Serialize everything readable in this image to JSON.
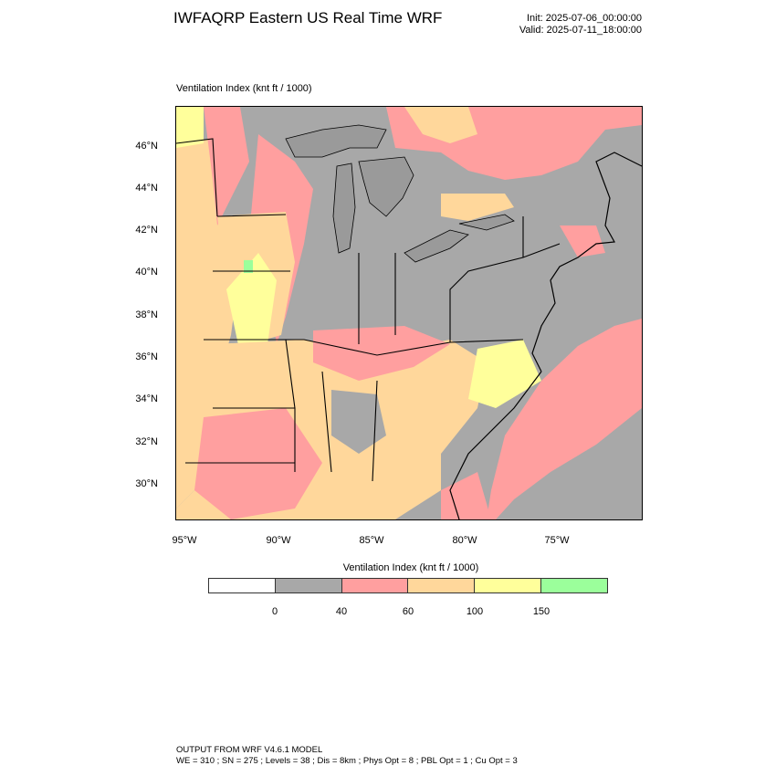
{
  "header": {
    "title": "IWFAQRP Eastern US Real Time WRF",
    "init": "Init: 2025-07-06_00:00:00",
    "valid": "Valid: 2025-07-11_18:00:00"
  },
  "map": {
    "subtitle": "Ventilation Index   (knt ft / 1000)",
    "lat_labels": [
      "46°N",
      "44°N",
      "42°N",
      "40°N",
      "38°N",
      "36°N",
      "34°N",
      "32°N",
      "30°N"
    ],
    "lon_labels": [
      "95°W",
      "90°W",
      "85°W",
      "80°W",
      "75°W"
    ],
    "colors": {
      "none": "#a8a8a8",
      "low": "#ff9f9f",
      "mid": "#ffd79b",
      "high": "#ffff9b",
      "top": "#9bff9b",
      "ocean": "#a8a8a8"
    }
  },
  "colorbar": {
    "title": "Ventilation Index  (knt ft / 1000)",
    "ticks": [
      "0",
      "40",
      "60",
      "100",
      "150"
    ],
    "segment_colors": [
      "#ffffff",
      "#a8a8a8",
      "#ff9f9f",
      "#ffd79b",
      "#ffff9b",
      "#9bff9b"
    ]
  },
  "footer": {
    "line1": "OUTPUT FROM WRF V4.6.1 MODEL",
    "line2": "WE = 310 ; SN = 275 ; Levels = 38 ; Dis = 8km ; Phys Opt = 8 ; PBL Opt = 1 ; Cu Opt = 3"
  }
}
